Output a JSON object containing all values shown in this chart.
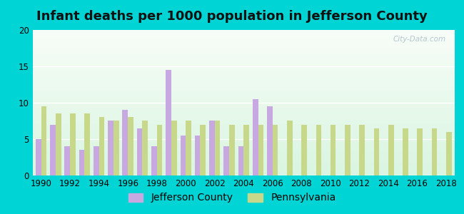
{
  "title": "Infant deaths per 1000 population in Jefferson County",
  "years": [
    1990,
    1991,
    1992,
    1993,
    1994,
    1995,
    1996,
    1997,
    1998,
    1999,
    2000,
    2001,
    2002,
    2003,
    2004,
    2005,
    2006,
    2007,
    2008,
    2009,
    2010,
    2011,
    2012,
    2013,
    2014,
    2015,
    2016,
    2017,
    2018
  ],
  "jefferson": [
    5.0,
    7.0,
    4.0,
    3.5,
    4.0,
    7.5,
    9.0,
    6.5,
    4.0,
    14.5,
    5.5,
    5.5,
    7.5,
    4.0,
    4.0,
    10.5,
    9.5,
    0.0,
    0.0,
    0.0,
    0.0,
    0.0,
    0.0,
    0.0,
    0.0,
    0.0,
    0.0,
    0.0,
    0.0
  ],
  "pennsylvania": [
    9.5,
    8.5,
    8.5,
    8.5,
    8.0,
    7.5,
    8.0,
    7.5,
    7.0,
    7.5,
    7.5,
    7.0,
    7.5,
    7.0,
    7.0,
    7.0,
    7.0,
    7.5,
    7.0,
    7.0,
    7.0,
    7.0,
    7.0,
    6.5,
    7.0,
    6.5,
    6.5,
    6.5,
    6.0
  ],
  "jefferson_color": "#c8a8e0",
  "pennsylvania_color": "#c8d88a",
  "bg_outer": "#00d4d4",
  "ylim": [
    0,
    20
  ],
  "yticks": [
    0,
    5,
    10,
    15,
    20
  ],
  "watermark": "City-Data.com",
  "title_fontsize": 13,
  "legend_fontsize": 10,
  "bar_width": 0.38
}
